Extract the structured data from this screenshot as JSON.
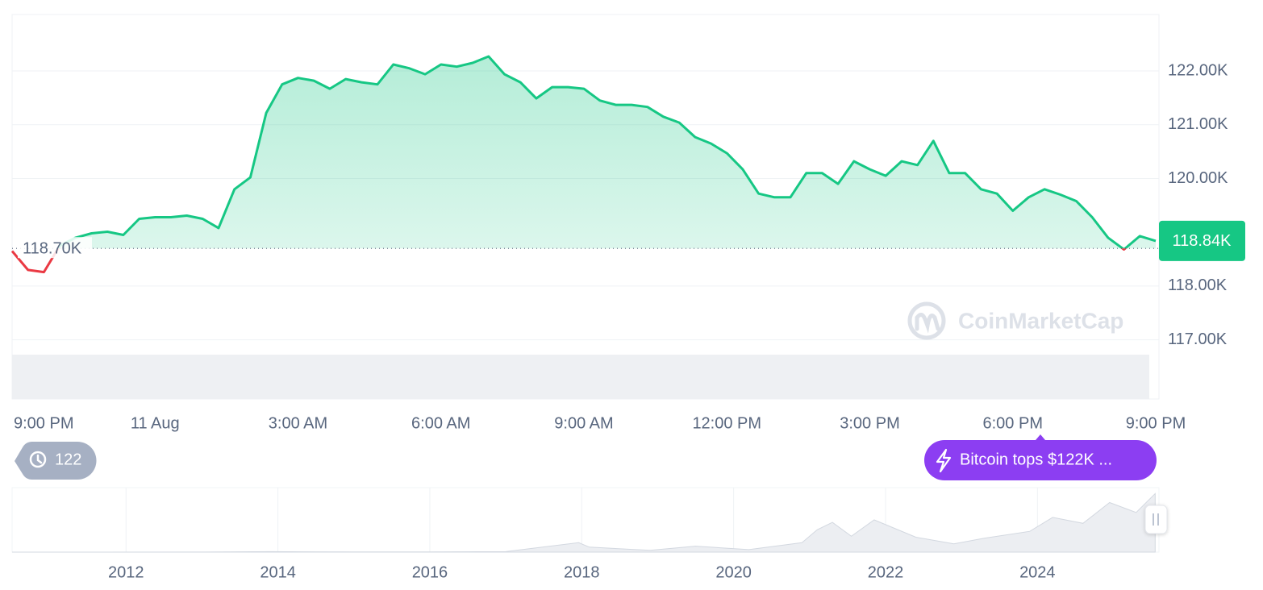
{
  "chart_data": [
    {
      "type": "line",
      "categories": [
        "9:00 PM",
        null,
        null,
        null,
        null,
        null,
        null,
        null,
        null,
        "11 Aug",
        null,
        null,
        null,
        null,
        null,
        null,
        null,
        null,
        "3:00 AM",
        null,
        null,
        null,
        null,
        null,
        null,
        null,
        null,
        "6:00 AM",
        null,
        null,
        null,
        null,
        null,
        null,
        null,
        null,
        "9:00 AM",
        null,
        null,
        null,
        null,
        null,
        null,
        null,
        null,
        "12:00 PM",
        null,
        null,
        null,
        null,
        null,
        null,
        null,
        null,
        "3:00 PM",
        null,
        null,
        null,
        null,
        null,
        null,
        null,
        null,
        "6:00 PM",
        null,
        null,
        null,
        null,
        null,
        null,
        null,
        null,
        "9:00 PM"
      ],
      "values": [
        118650,
        118300,
        118260,
        118750,
        118900,
        118980,
        119010,
        118950,
        119250,
        119280,
        119280,
        119310,
        119250,
        119080,
        119800,
        120020,
        121220,
        121750,
        121870,
        121820,
        121670,
        121850,
        121790,
        121750,
        122120,
        122050,
        121940,
        122120,
        122080,
        122150,
        122270,
        121940,
        121790,
        121490,
        121700,
        121700,
        121670,
        121450,
        121370,
        121370,
        121330,
        121150,
        121040,
        120770,
        120650,
        120470,
        120170,
        119720,
        119650,
        119650,
        120100,
        120100,
        119900,
        120320,
        120170,
        120050,
        120320,
        120250,
        120700,
        120100,
        120100,
        119800,
        119720,
        119400,
        119650,
        119800,
        119700,
        119580,
        119280,
        118900,
        118680,
        118930,
        118840
      ],
      "color": "#16c784",
      "down_color": "#ea3943",
      "reference_line": {
        "value": 118700,
        "label": "118.70K"
      },
      "current_price": {
        "value": 118840,
        "label": "118.84K"
      },
      "ylim": [
        115900,
        123050
      ],
      "yticks": [
        {
          "value": 117000,
          "label": "117.00K"
        },
        {
          "value": 118000,
          "label": "118.00K"
        },
        {
          "value": 120000,
          "label": "120.00K"
        },
        {
          "value": 121000,
          "label": "121.00K"
        },
        {
          "value": 122000,
          "label": "122.00K"
        }
      ],
      "grid": true
    },
    {
      "type": "area",
      "x": [
        2010.5,
        2013.0,
        2013.9,
        2015.0,
        2016.0,
        2017.0,
        2017.96,
        2018.1,
        2018.9,
        2019.5,
        2020.2,
        2020.9,
        2021.1,
        2021.3,
        2021.55,
        2021.85,
        2022.4,
        2022.9,
        2023.3,
        2023.9,
        2024.2,
        2024.6,
        2024.95,
        2025.3,
        2025.55
      ],
      "values": [
        0,
        100,
        1000,
        300,
        400,
        1000,
        19000,
        10000,
        3500,
        12000,
        5000,
        19000,
        45000,
        60000,
        32000,
        65000,
        30000,
        16500,
        28000,
        42000,
        70000,
        58000,
        100000,
        80000,
        118000
      ],
      "color": "#d3d8e0",
      "xlim": [
        2010.5,
        2025.6
      ],
      "xticks": [
        2012,
        2014,
        2016,
        2018,
        2020,
        2022,
        2024
      ],
      "ylim": [
        0,
        130000
      ],
      "grid": true
    }
  ],
  "badges": {
    "history_count": 122,
    "news": "Bitcoin tops $122K ..."
  },
  "watermark": "CoinMarketCap"
}
